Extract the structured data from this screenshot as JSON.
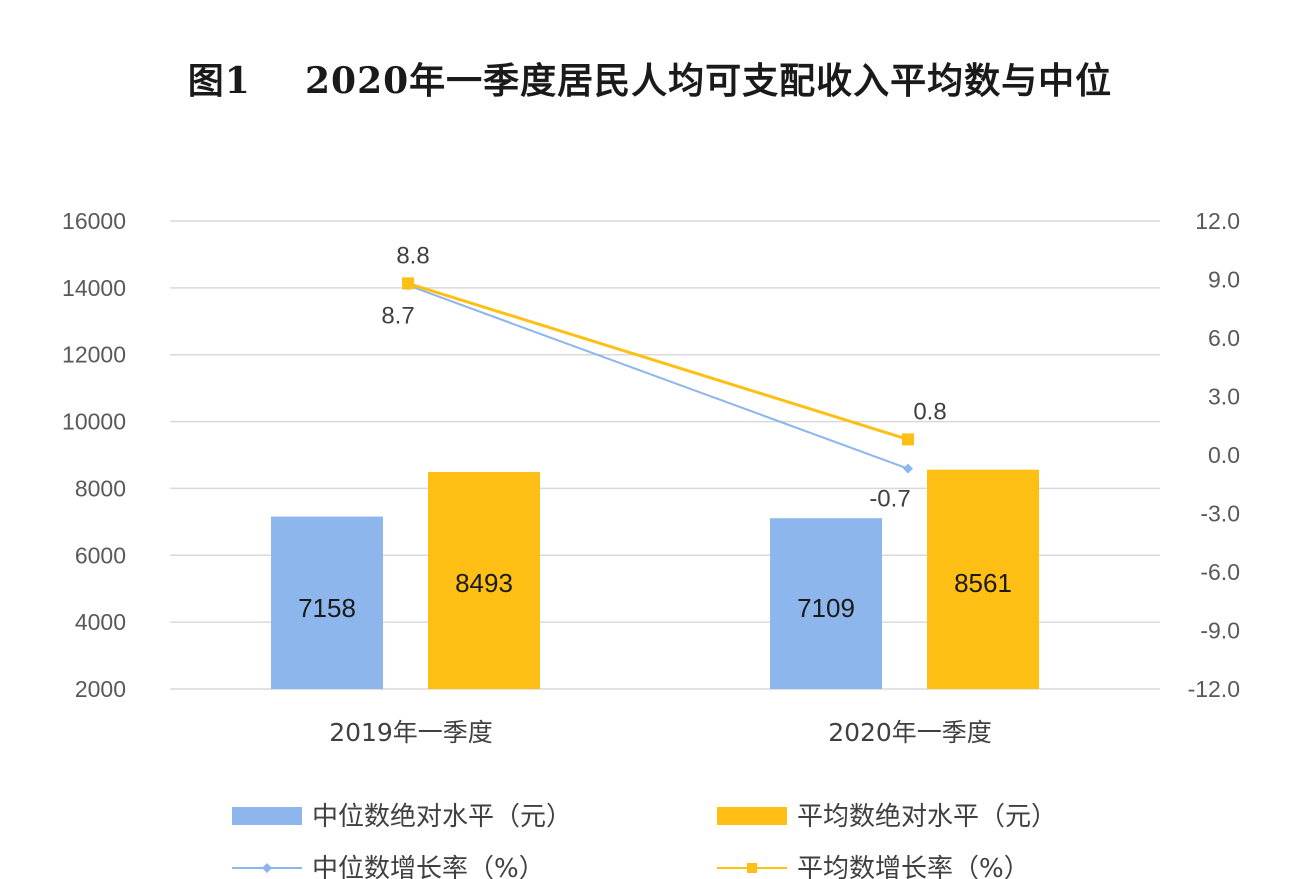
{
  "title": "图1    2020年一季度居民人均可支配收入平均数与中位",
  "chart_data": {
    "type": "bar",
    "categories": [
      "2019年一季度",
      "2020年一季度"
    ],
    "series": [
      {
        "name": "中位数绝对水平（元）",
        "kind": "bar",
        "axis": "left",
        "color": "#8DB6EC",
        "values": [
          7158,
          7109
        ]
      },
      {
        "name": "平均数绝对水平（元）",
        "kind": "bar",
        "axis": "left",
        "color": "#FFBF14",
        "values": [
          8493,
          8561
        ]
      },
      {
        "name": "中位数增长率（%）",
        "kind": "line",
        "axis": "right",
        "color": "#8DB6EC",
        "marker": "diamond",
        "values": [
          8.7,
          -0.7
        ]
      },
      {
        "name": "平均数增长率（%）",
        "kind": "line",
        "axis": "right",
        "color": "#FFBF14",
        "marker": "square",
        "values": [
          8.8,
          0.8
        ]
      }
    ],
    "y_left": {
      "min": 2000,
      "max": 16000,
      "ticks": [
        "16000",
        "14000",
        "12000",
        "10000",
        "8000",
        "6000",
        "4000",
        "2000"
      ]
    },
    "y_right": {
      "min": -12,
      "max": 12,
      "ticks": [
        "12.0",
        "9.0",
        "6.0",
        "3.0",
        "0.0",
        "-3.0",
        "-6.0",
        "-9.0",
        "-12.0"
      ]
    },
    "bar_labels": [
      [
        "7158",
        "7109"
      ],
      [
        "8493",
        "8561"
      ]
    ],
    "line_labels": [
      [
        "8.7",
        "-0.7"
      ],
      [
        "8.8",
        "0.8"
      ]
    ],
    "grid": true,
    "legend_position": "bottom"
  }
}
